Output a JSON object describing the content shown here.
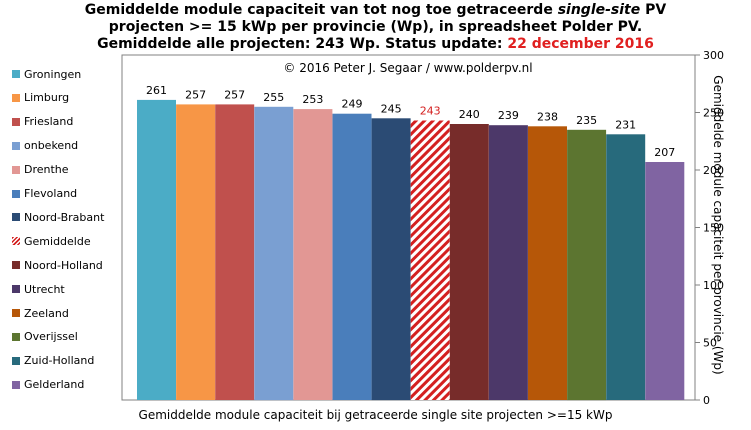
{
  "title": {
    "line1_pre": "Gemiddelde module capaciteit van tot nog toe getraceerde ",
    "line1_italic": "single-site",
    "line1_post": " PV",
    "line2": "projecten >= 15 kWp per provincie (Wp), in spreadsheet Polder PV.",
    "line3_pre": "Gemiddelde alle projecten: 243 Wp. Status update: ",
    "line3_date": "22 december 2016"
  },
  "watermark": "© 2016 Peter J. Segaar / www.polderpv.nl",
  "colors": {
    "hatch": "#d42020",
    "title_highlight": "#e02020"
  },
  "chart_data": {
    "type": "bar",
    "categories": [
      "Groningen",
      "Limburg",
      "Friesland",
      "onbekend",
      "Drenthe",
      "Flevoland",
      "Noord-Brabant",
      "Gemiddelde",
      "Noord-Holland",
      "Utrecht",
      "Zeeland",
      "Overijssel",
      "Zuid-Holland",
      "Gelderland"
    ],
    "values": [
      261,
      257,
      257,
      255,
      253,
      249,
      245,
      243,
      240,
      239,
      238,
      235,
      231,
      207
    ],
    "colors": [
      "#4bacc6",
      "#f79646",
      "#c0504d",
      "#7a9fd2",
      "#e29794",
      "#4a7ebb",
      "#2b4b74",
      "hatch",
      "#772c2a",
      "#4c3869",
      "#b65708",
      "#5c7530",
      "#276a7c",
      "#8064a2"
    ],
    "xlabel": "Gemiddelde module capaciteit bij getraceerde single site projecten >=15 kWp",
    "ylabel": "Gemiddelde module capaciteit per provincie (Wp)",
    "ylim": [
      0,
      300
    ],
    "yticks": [
      0,
      50,
      100,
      150,
      200,
      250,
      300
    ],
    "axis_side": "right",
    "legend_position": "left",
    "grid": false
  }
}
